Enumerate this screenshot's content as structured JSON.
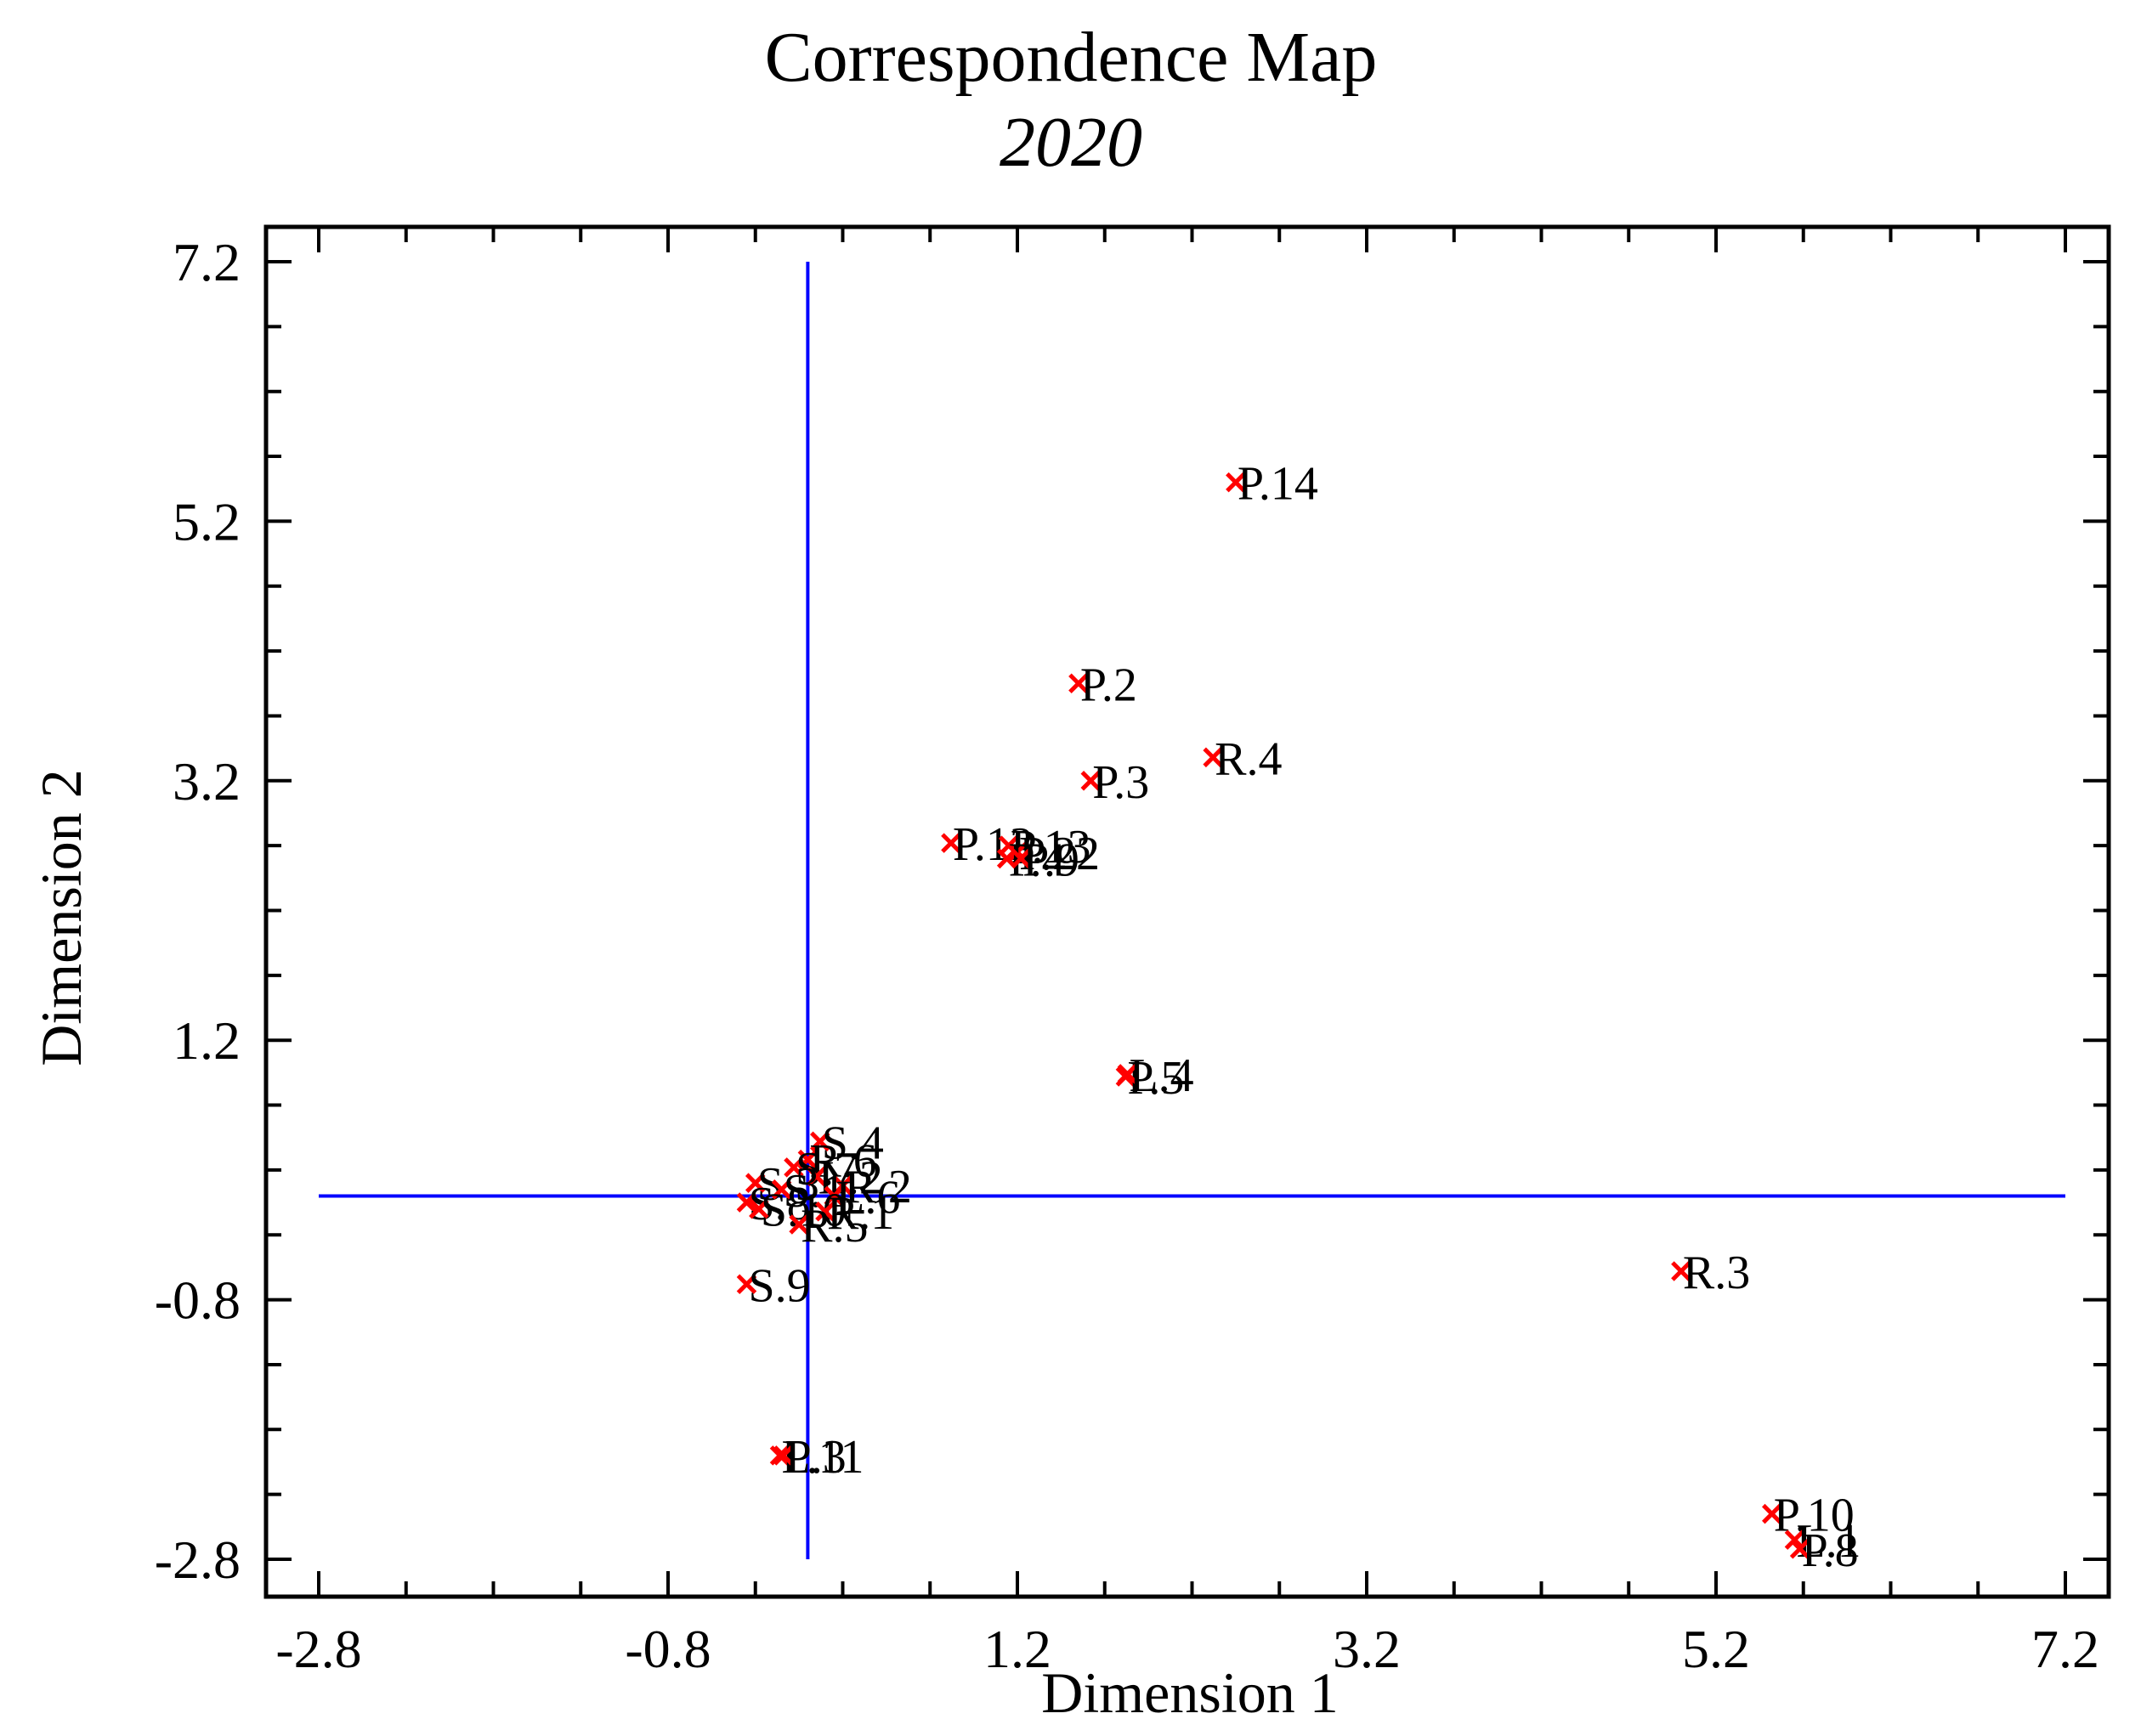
{
  "chart_data": {
    "type": "scatter",
    "title": "Correspondence Map",
    "subtitle": "2020",
    "xlabel": "Dimension 1",
    "ylabel": "Dimension 2",
    "xlim": [
      -2.8,
      7.2
    ],
    "ylim": [
      -2.8,
      7.2
    ],
    "x_ticks": [
      -2.8,
      -0.8,
      1.2,
      3.2,
      5.2,
      7.2
    ],
    "x_tick_labels": [
      "-2.8",
      "-0.8",
      "1.2",
      "3.2",
      "5.2",
      "7.2"
    ],
    "y_ticks": [
      -2.8,
      -0.8,
      1.2,
      3.2,
      5.2,
      7.2
    ],
    "y_tick_labels": [
      "-2.8",
      "-0.8",
      "1.2",
      "3.2",
      "5.2",
      "7.2"
    ],
    "reference_lines": {
      "x": 0,
      "y": 0,
      "color": "#0000ff"
    },
    "marker_color": "#ff0000",
    "axis_color": "#000000",
    "points": [
      {
        "label": "P.14",
        "x": 2.45,
        "y": 5.5
      },
      {
        "label": "P.2",
        "x": 1.55,
        "y": 3.95
      },
      {
        "label": "R.4",
        "x": 2.32,
        "y": 3.38
      },
      {
        "label": "P.3",
        "x": 1.62,
        "y": 3.2
      },
      {
        "label": "P.12",
        "x": 0.82,
        "y": 2.72
      },
      {
        "label": "P.13",
        "x": 1.15,
        "y": 2.7
      },
      {
        "label": "P.22",
        "x": 1.2,
        "y": 2.65
      },
      {
        "label": "P.4",
        "x": 1.14,
        "y": 2.6
      },
      {
        "label": "P.9",
        "x": 1.22,
        "y": 2.6
      },
      {
        "label": "P.5",
        "x": 1.82,
        "y": 0.92
      },
      {
        "label": "L.4",
        "x": 1.83,
        "y": 0.94
      },
      {
        "label": "S.4",
        "x": 0.07,
        "y": 0.42
      },
      {
        "label": "R.6",
        "x": 0.0,
        "y": 0.28
      },
      {
        "label": "S.7",
        "x": -0.08,
        "y": 0.22
      },
      {
        "label": "L.2",
        "x": 0.05,
        "y": 0.15
      },
      {
        "label": "S.3",
        "x": -0.3,
        "y": 0.1
      },
      {
        "label": "R.2",
        "x": 0.2,
        "y": 0.08
      },
      {
        "label": "S.1",
        "x": -0.15,
        "y": 0.05
      },
      {
        "label": "L.6",
        "x": 0.15,
        "y": 0.0
      },
      {
        "label": "S.8",
        "x": -0.35,
        "y": -0.05
      },
      {
        "label": "S.10",
        "x": -0.28,
        "y": -0.1
      },
      {
        "label": "R.1",
        "x": 0.1,
        "y": -0.12
      },
      {
        "label": "R.5",
        "x": -0.05,
        "y": -0.22
      },
      {
        "label": "S.9",
        "x": -0.35,
        "y": -0.68
      },
      {
        "label": "L.3",
        "x": -0.16,
        "y": -2.0
      },
      {
        "label": "P.11",
        "x": -0.14,
        "y": -2.0
      },
      {
        "label": "R.3",
        "x": 5.0,
        "y": -0.58
      },
      {
        "label": "P.10",
        "x": 5.52,
        "y": -2.45
      },
      {
        "label": "L.1",
        "x": 5.65,
        "y": -2.65
      },
      {
        "label": "P.8",
        "x": 5.68,
        "y": -2.72
      }
    ]
  }
}
